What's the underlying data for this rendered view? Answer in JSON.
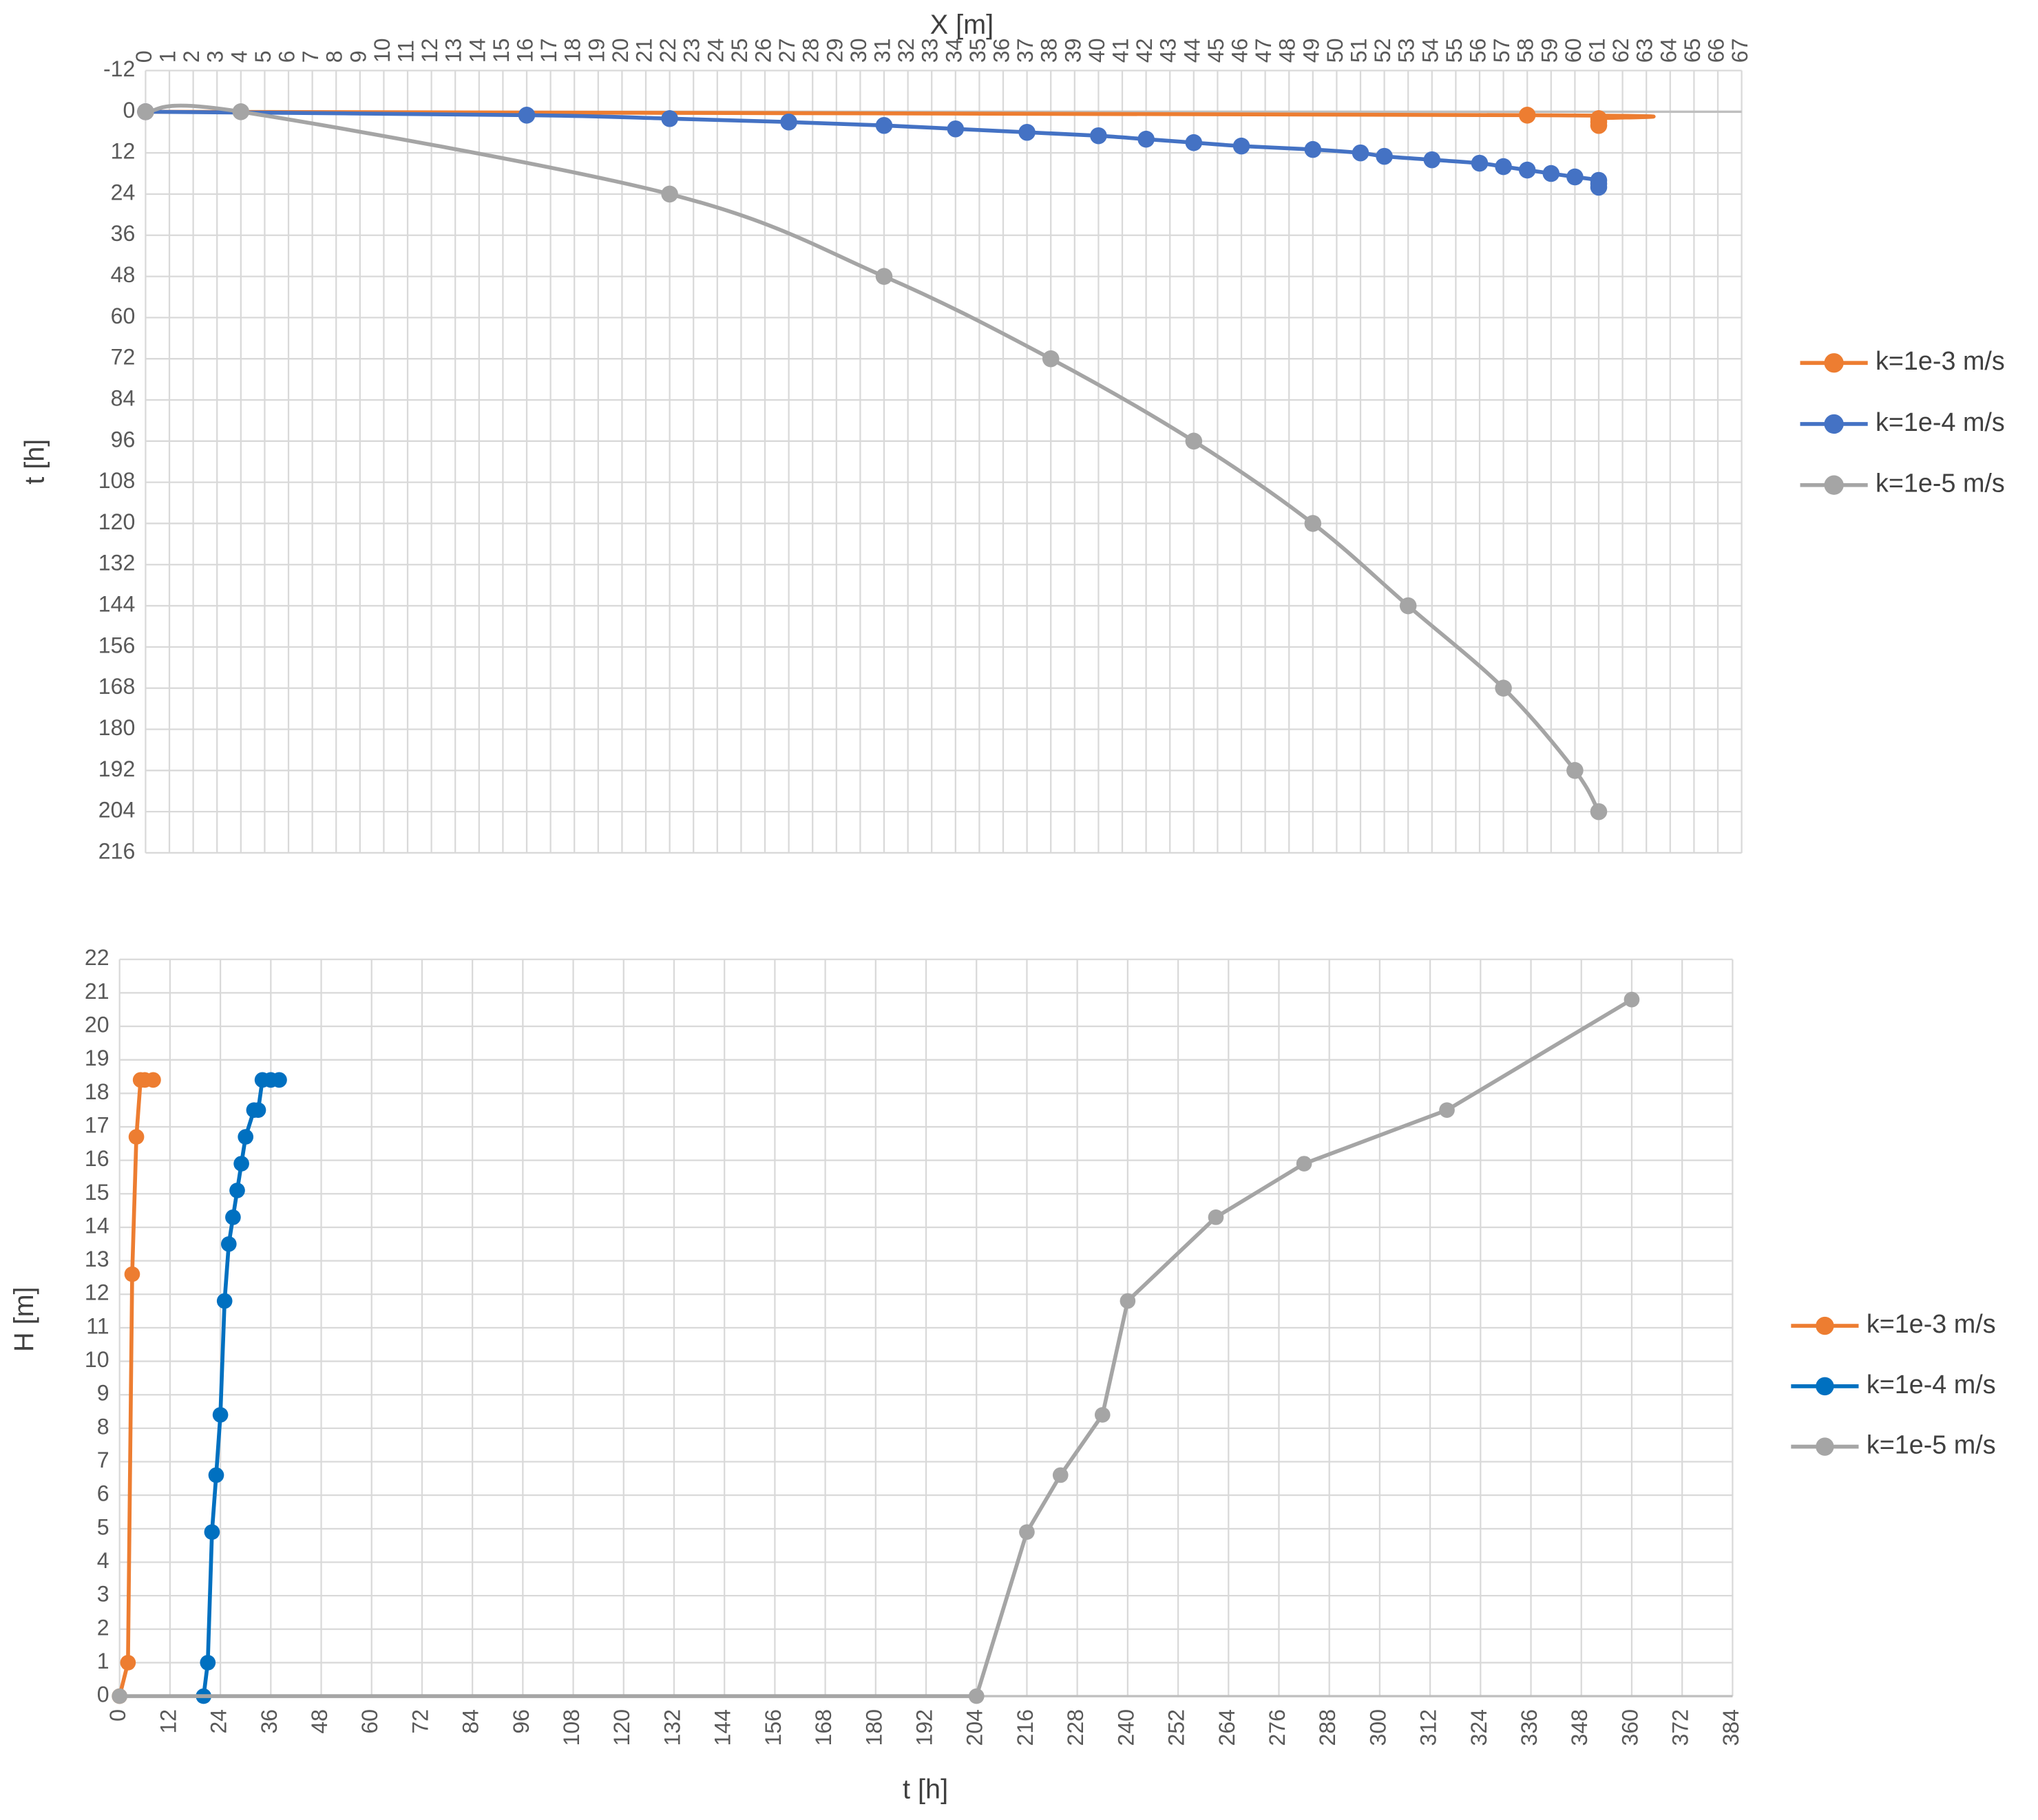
{
  "chart_data": [
    {
      "type": "line",
      "x_title": "X [m]",
      "y_title": "t [h]",
      "xlim": [
        0,
        67
      ],
      "xticks": [
        0,
        1,
        2,
        3,
        4,
        5,
        6,
        7,
        8,
        9,
        10,
        11,
        12,
        13,
        14,
        15,
        16,
        17,
        18,
        19,
        20,
        21,
        22,
        23,
        24,
        25,
        26,
        27,
        28,
        29,
        30,
        31,
        32,
        33,
        34,
        35,
        36,
        37,
        38,
        39,
        40,
        41,
        42,
        43,
        44,
        45,
        46,
        47,
        48,
        49,
        50,
        51,
        52,
        53,
        54,
        55,
        56,
        57,
        58,
        59,
        60,
        61,
        62,
        63,
        64,
        65,
        66,
        67
      ],
      "ylim": [
        -12,
        216
      ],
      "yticks": [
        -12,
        0,
        12,
        24,
        36,
        48,
        60,
        72,
        84,
        96,
        108,
        120,
        132,
        144,
        156,
        168,
        180,
        192,
        204,
        216
      ],
      "y_inverted": true,
      "x_axis_position": "top",
      "grid": true,
      "smooth": true,
      "legend_position": "right",
      "series": [
        {
          "name": "k=1e-3 m/s",
          "color": "#ed7d31",
          "x": [
            0,
            58,
            61,
            61,
            61
          ],
          "values": [
            0,
            1,
            2,
            3,
            4
          ]
        },
        {
          "name": "k=1e-4 m/s",
          "color": "#4472c4",
          "x": [
            0,
            16,
            22,
            27,
            31,
            34,
            37,
            40,
            42,
            44,
            46,
            49,
            51,
            52,
            54,
            56,
            57,
            58,
            59,
            60,
            61,
            61,
            61
          ],
          "values": [
            0,
            1,
            2,
            3,
            4,
            5,
            6,
            7,
            8,
            9,
            10,
            11,
            12,
            13,
            14,
            15,
            16,
            17,
            18,
            19,
            20,
            21,
            22
          ]
        },
        {
          "name": "k=1e-5 m/s",
          "color": "#a5a5a5",
          "x": [
            0,
            4,
            22,
            31,
            38,
            44,
            49,
            53,
            57,
            60,
            61
          ],
          "values": [
            0,
            0,
            24,
            48,
            72,
            96,
            120,
            144,
            168,
            192,
            204
          ]
        }
      ]
    },
    {
      "type": "line",
      "x_title": "t [h]",
      "y_title": "H [m]",
      "xlim": [
        0,
        384
      ],
      "xticks": [
        0,
        12,
        24,
        36,
        48,
        60,
        72,
        84,
        96,
        108,
        120,
        132,
        144,
        156,
        168,
        180,
        192,
        204,
        216,
        228,
        240,
        252,
        264,
        276,
        288,
        300,
        312,
        324,
        336,
        348,
        360,
        372,
        384
      ],
      "ylim": [
        0,
        22
      ],
      "yticks": [
        0,
        1,
        2,
        3,
        4,
        5,
        6,
        7,
        8,
        9,
        10,
        11,
        12,
        13,
        14,
        15,
        16,
        17,
        18,
        19,
        20,
        21,
        22
      ],
      "y_inverted": false,
      "x_axis_position": "bottom",
      "grid": true,
      "smooth": false,
      "legend_position": "right",
      "series": [
        {
          "name": "k=1e-3 m/s",
          "color": "#ed7d31",
          "x": [
            0,
            2,
            3,
            4,
            5,
            6,
            8
          ],
          "values": [
            0,
            1,
            12.6,
            16.7,
            18.4,
            18.4,
            18.4
          ]
        },
        {
          "name": "k=1e-4 m/s",
          "color": "#0070c0",
          "x": [
            20,
            21,
            22,
            23,
            24,
            25,
            26,
            27,
            28,
            29,
            30,
            32,
            33,
            34,
            36,
            38
          ],
          "values": [
            0,
            1,
            4.9,
            6.6,
            8.4,
            11.8,
            13.5,
            14.3,
            15.1,
            15.9,
            16.7,
            17.5,
            17.5,
            18.4,
            18.4,
            18.4
          ]
        },
        {
          "name": "k=1e-5 m/s",
          "color": "#a5a5a5",
          "x": [
            0,
            204,
            216,
            224,
            234,
            240,
            261,
            282,
            316,
            360
          ],
          "values": [
            0,
            0,
            4.9,
            6.6,
            8.4,
            11.8,
            14.3,
            15.9,
            17.5,
            20.8
          ]
        }
      ]
    }
  ]
}
